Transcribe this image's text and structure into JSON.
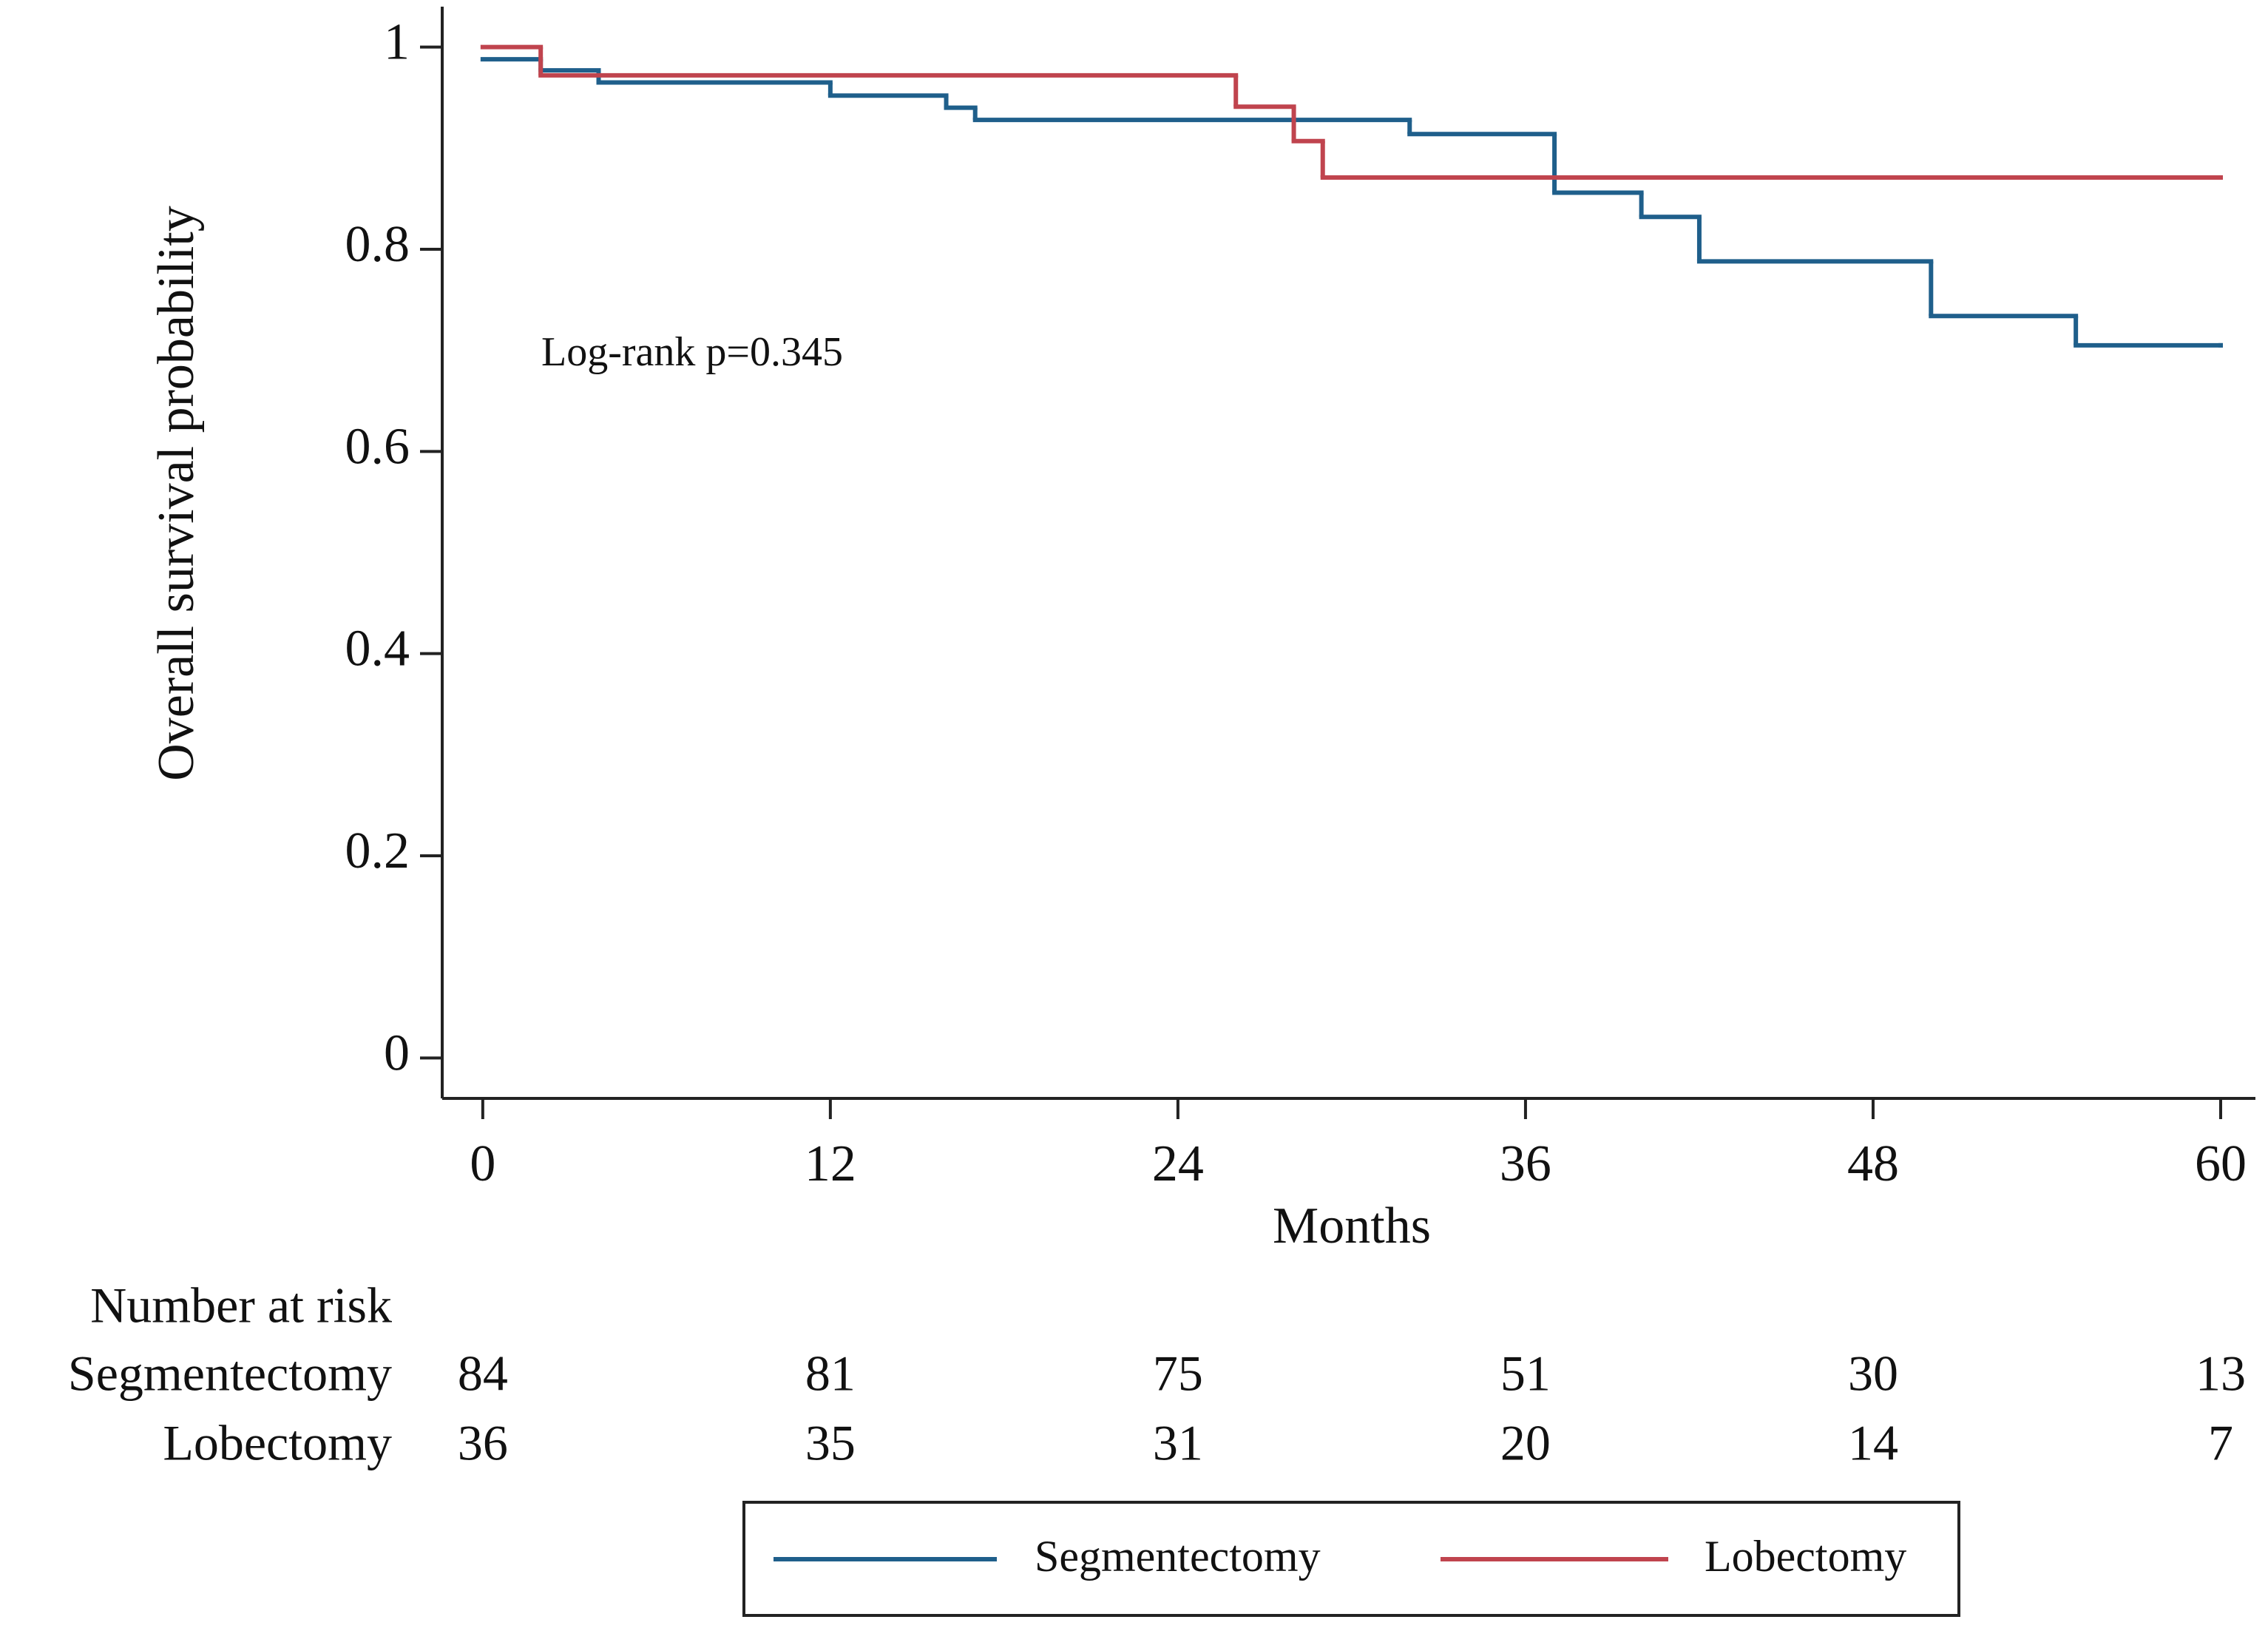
{
  "chart_data": {
    "type": "step",
    "xlabel": "Months",
    "ylabel": "Overall survival probability",
    "annotation": "Log-rank p=0.345",
    "xlim": [
      -1.4,
      61.2
    ],
    "ylim": [
      -0.04,
      1.04
    ],
    "xticks": [
      0,
      12,
      24,
      36,
      48,
      60
    ],
    "yticks": [
      0,
      0.2,
      0.4,
      0.6,
      0.8,
      1
    ],
    "series": [
      {
        "name": "Segmentectomy",
        "color": "#1f5f8b",
        "x": [
          0,
          2,
          4,
          12,
          16,
          17,
          32,
          37,
          40,
          42,
          50,
          55,
          60
        ],
        "values": [
          0.988,
          0.977,
          0.965,
          0.952,
          0.94,
          0.928,
          0.914,
          0.856,
          0.832,
          0.788,
          0.734,
          0.705,
          0.705
        ]
      },
      {
        "name": "Lobectomy",
        "color": "#c0444e",
        "x": [
          0,
          2,
          26,
          28,
          29,
          60
        ],
        "values": [
          1.0,
          0.972,
          0.941,
          0.907,
          0.871,
          0.871
        ]
      }
    ],
    "risk_table": {
      "title": "Number at risk",
      "rows": [
        {
          "name": "Segmentectomy",
          "values": [
            84,
            81,
            75,
            51,
            30,
            13
          ]
        },
        {
          "name": "Lobectomy",
          "values": [
            36,
            35,
            31,
            20,
            14,
            7
          ]
        }
      ]
    }
  }
}
